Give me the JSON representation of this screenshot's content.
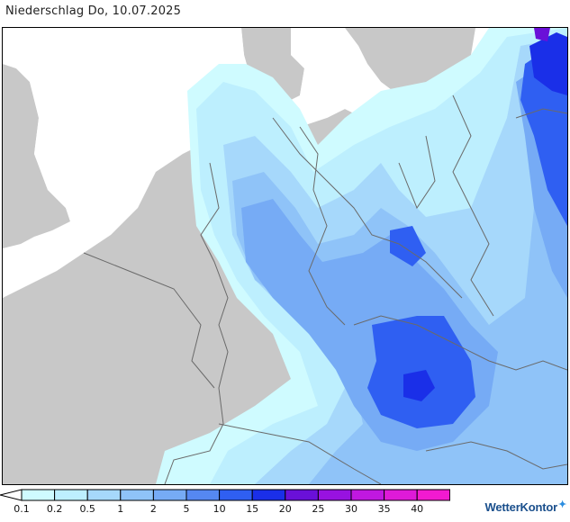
{
  "title": "Niederschlag Do, 10.07.2025",
  "legend": {
    "labels": [
      "0.1",
      "0.2",
      "0.5",
      "1",
      "2",
      "5",
      "10",
      "15",
      "20",
      "25",
      "30",
      "35",
      "40"
    ],
    "colors": [
      "#cffbff",
      "#bdeffe",
      "#a6d8fb",
      "#8fc3f8",
      "#76abf5",
      "#5588f2",
      "#2f5ff2",
      "#1a2fe8",
      "#6a10d8",
      "#9812e0",
      "#c018e0",
      "#de1ad8",
      "#f21ad0"
    ],
    "arrow_left_color": "#ffffff",
    "arrow_right_color": "#dc2fd8"
  },
  "map": {
    "sea_color": "#ffffff",
    "land_color": "#c8c8c8",
    "border_color": "#6a6a6a"
  },
  "brand": {
    "name": "WetterKontor",
    "icon": "raindrops-icon"
  }
}
